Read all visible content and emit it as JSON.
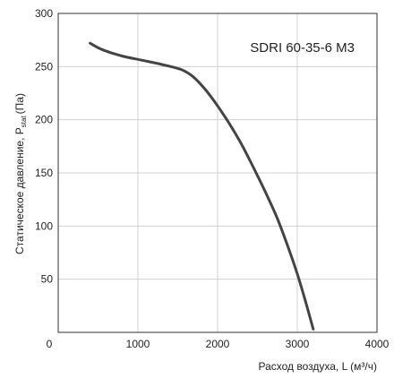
{
  "chart_data": {
    "type": "line",
    "title": "",
    "xlabel": "Расход воздуха, L (м³/ч)",
    "ylabel": "Статическое давление, P",
    "ylabel_subscript": "stat",
    "ylabel_unit": "(Па)",
    "xlim": [
      0,
      4000
    ],
    "ylim": [
      0,
      300
    ],
    "x_ticks": [
      0,
      1000,
      2000,
      3000,
      4000
    ],
    "y_ticks": [
      50,
      100,
      150,
      200,
      250,
      300
    ],
    "grid": true,
    "series": [
      {
        "name": "SDRI 60-35-6 M3",
        "x": [
          400,
          550,
          800,
          1050,
          1300,
          1550,
          1700,
          1850,
          2000,
          2150,
          2300,
          2450,
          2600,
          2750,
          2900,
          3000,
          3100,
          3200
        ],
        "y": [
          272,
          266,
          260,
          256,
          252,
          247,
          240,
          228,
          213,
          196,
          177,
          155,
          132,
          107,
          77,
          55,
          30,
          3
        ]
      }
    ],
    "colors": {
      "line": "#444444",
      "grid": "#d0d0d0",
      "frame": "#333333",
      "text": "#222222"
    }
  }
}
